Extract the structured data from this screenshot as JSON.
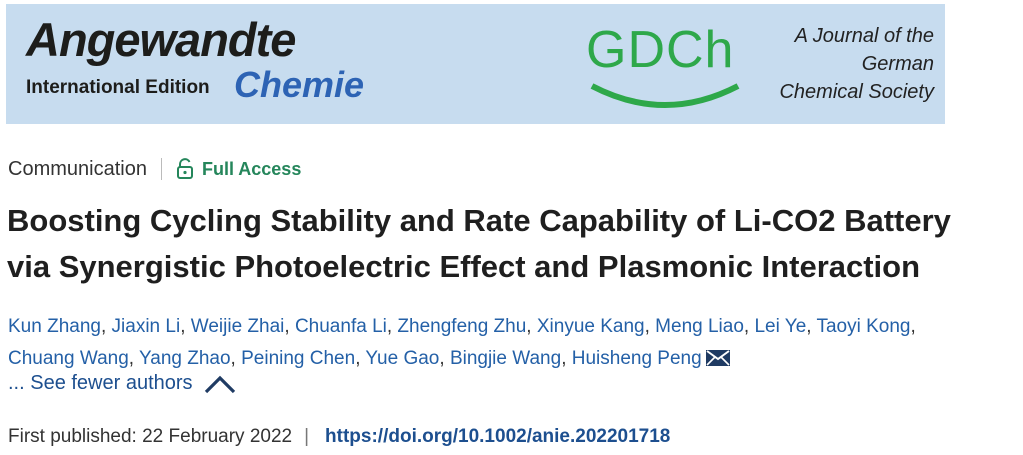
{
  "banner": {
    "journal_word": "Angewandte",
    "edition_label": "International Edition",
    "journal_chemie": "Chemie",
    "society_logo_text": "GDCh",
    "tagline": [
      "A Journal of the",
      "German",
      "Chemical Society"
    ]
  },
  "article": {
    "type": "Communication",
    "access_label": "Full Access",
    "title_lines": [
      "Boosting Cycling Stability and Rate Capability of Li-CO2 Battery",
      "via Synergistic Photoelectric Effect and Plasmonic Interaction"
    ],
    "authors_line1": [
      "Kun Zhang",
      "Jiaxin Li",
      "Weijie Zhai",
      "Chuanfa Li",
      "Zhengfeng Zhu",
      "Xinyue Kang",
      "Meng Liao",
      "Lei Ye",
      "Taoyi Kong"
    ],
    "authors_line2": [
      "Chuang Wang",
      "Yang Zhao",
      "Peining Chen",
      "Yue Gao",
      "Bingjie Wang",
      "Huisheng Peng"
    ],
    "see_fewer_label": "... See fewer authors",
    "published_label": "First published: 22 February 2022",
    "date_separator": "|",
    "doi": "https://doi.org/10.1002/anie.202201718"
  },
  "icons": [
    "lock-open-icon",
    "mail-icon",
    "chevron-up-icon"
  ],
  "colors": {
    "banner_bg": "#c7dcef",
    "chemie_blue": "#2d63b4",
    "gdch_green": "#2ea84a",
    "access_green": "#25865b",
    "link_blue": "#1d4f8f"
  }
}
